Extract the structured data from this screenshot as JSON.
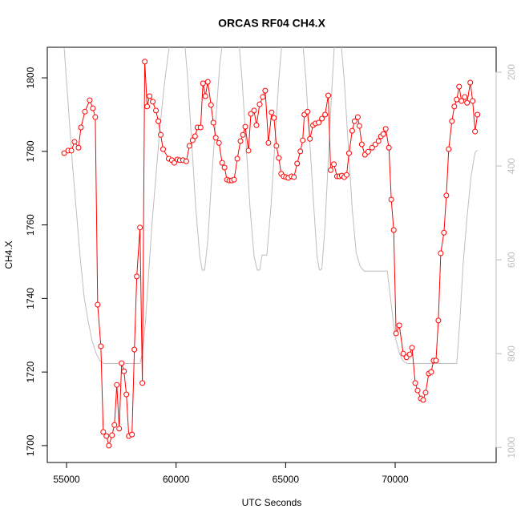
{
  "chart_data": {
    "type": "line",
    "title": "ORCAS RF04 CH4.X",
    "xlabel": "UTC Seconds",
    "ylabel": "CH4.X",
    "xlim": [
      54120,
      74610
    ],
    "ylim": [
      1695.4,
      1808.3
    ],
    "y2lim": [
      1032,
      147
    ],
    "xticks": [
      55000,
      60000,
      65000,
      70000
    ],
    "yticks": [
      1700,
      1720,
      1740,
      1760,
      1780,
      1800
    ],
    "y2ticks": [
      200,
      400,
      600,
      800,
      1000
    ],
    "series": [
      {
        "color": "#ff0000",
        "marker": "circle",
        "x": [
          54891,
          55073,
          55219,
          55364,
          55546,
          55656,
          55838,
          56056,
          56202,
          56311,
          56420,
          56566,
          56675,
          56821,
          56930,
          57076,
          57185,
          57294,
          57404,
          57513,
          57622,
          57731,
          57841,
          57986,
          58096,
          58205,
          58351,
          58460,
          58569,
          58678,
          58788,
          58934,
          59079,
          59189,
          59298,
          59407,
          59662,
          59807,
          59917,
          60062,
          60172,
          60317,
          60463,
          60609,
          60754,
          60864,
          60973,
          61119,
          61228,
          61337,
          61447,
          61592,
          61701,
          61811,
          61957,
          62102,
          62211,
          62321,
          62430,
          62539,
          62648,
          62794,
          62940,
          63049,
          63158,
          63304,
          63414,
          63559,
          63668,
          63814,
          63960,
          64069,
          64215,
          64360,
          64470,
          64579,
          64688,
          64797,
          64907,
          65016,
          65125,
          65271,
          65380,
          65526,
          65672,
          65781,
          65854,
          65999,
          66109,
          66254,
          66364,
          66509,
          66655,
          66801,
          66946,
          67055,
          67201,
          67347,
          67456,
          67565,
          67674,
          67784,
          67893,
          68039,
          68148,
          68294,
          68367,
          68475,
          68621,
          68767,
          68949,
          69095,
          69240,
          69350,
          69459,
          69568,
          69714,
          69823,
          69933,
          70042,
          70187,
          70370,
          70515,
          70661,
          70770,
          70916,
          71025,
          71171,
          71280,
          71389,
          71535,
          71644,
          71753,
          71863,
          71972,
          72081,
          72227,
          72336,
          72445,
          72591,
          72700,
          72810,
          72919,
          73028,
          73174,
          73283,
          73429,
          73538,
          73647,
          73757
        ],
        "values": [
          1779.5,
          1780.2,
          1780.2,
          1782.6,
          1781.0,
          1786.5,
          1790.8,
          1793.9,
          1791.7,
          1789.3,
          1738.3,
          1727.0,
          1703.7,
          1702.6,
          1700.0,
          1702.8,
          1705.6,
          1716.5,
          1704.6,
          1722.4,
          1720.2,
          1713.9,
          1702.6,
          1703.0,
          1726.1,
          1746.0,
          1759.3,
          1717.0,
          1804.4,
          1792.2,
          1795.0,
          1793.5,
          1791.1,
          1788.2,
          1784.5,
          1780.6,
          1778.0,
          1777.6,
          1776.9,
          1777.8,
          1777.6,
          1777.6,
          1777.3,
          1781.5,
          1783.0,
          1784.1,
          1786.5,
          1786.5,
          1798.5,
          1795.0,
          1798.9,
          1792.6,
          1787.8,
          1783.7,
          1782.3,
          1776.9,
          1775.6,
          1772.3,
          1772.1,
          1772.1,
          1772.3,
          1778.0,
          1782.8,
          1784.5,
          1786.7,
          1780.2,
          1790.2,
          1791.1,
          1787.1,
          1792.8,
          1794.8,
          1796.5,
          1782.3,
          1790.6,
          1789.1,
          1781.5,
          1778.2,
          1773.9,
          1773.2,
          1773.0,
          1772.8,
          1773.2,
          1773.0,
          1776.7,
          1780.0,
          1783.0,
          1790.0,
          1790.8,
          1783.4,
          1787.1,
          1787.6,
          1787.8,
          1788.9,
          1790.0,
          1795.2,
          1774.9,
          1776.5,
          1773.2,
          1773.2,
          1773.4,
          1773.0,
          1773.6,
          1779.5,
          1785.6,
          1788.2,
          1789.3,
          1786.9,
          1781.9,
          1779.1,
          1779.9,
          1781.0,
          1781.9,
          1782.8,
          1784.1,
          1784.7,
          1786.1,
          1781.0,
          1766.9,
          1758.6,
          1730.5,
          1732.7,
          1725.0,
          1724.0,
          1724.8,
          1726.6,
          1717.0,
          1715.0,
          1712.8,
          1712.4,
          1714.4,
          1719.6,
          1720.0,
          1723.1,
          1723.1,
          1734.0,
          1752.3,
          1757.9,
          1768.0,
          1780.6,
          1788.2,
          1792.2,
          1794.1,
          1797.6,
          1793.7,
          1794.8,
          1793.2,
          1798.7,
          1793.7,
          1785.4,
          1790.0
        ]
      },
      {
        "color": "#bebebe",
        "axis": "y2",
        "x": [
          54891,
          55073,
          55255,
          55437,
          55619,
          55801,
          55983,
          56165,
          56347,
          56530,
          56712,
          58351,
          58460,
          58605,
          58751,
          58897,
          59079,
          59261,
          59443,
          59625,
          59807,
          60354,
          60536,
          60718,
          60900,
          61082,
          61192,
          61301,
          61447,
          61629,
          61811,
          61993,
          62175,
          62831,
          63013,
          63195,
          63377,
          63559,
          63705,
          63814,
          63923,
          64142,
          64324,
          64506,
          64688,
          64870,
          65744,
          65927,
          66109,
          66291,
          66436,
          66546,
          66655,
          66801,
          66946,
          67092,
          67238,
          67492,
          67674,
          67857,
          68039,
          68221,
          68403,
          68585,
          69641,
          69823,
          70005,
          70187,
          70370,
          70552,
          72810,
          72955,
          73101,
          73283,
          73465,
          73647,
          73757
        ],
        "values": [
          149,
          268,
          388,
          491,
          593,
          679,
          730,
          773,
          799,
          816,
          821,
          821,
          799,
          730,
          627,
          525,
          422,
          320,
          234,
          166,
          115,
          115,
          217,
          354,
          491,
          593,
          622,
          622,
          559,
          422,
          303,
          183,
          115,
          115,
          217,
          354,
          491,
          593,
          622,
          622,
          590,
          590,
          491,
          354,
          217,
          115,
          115,
          217,
          354,
          491,
          593,
          622,
          619,
          525,
          388,
          251,
          132,
          115,
          217,
          354,
          491,
          585,
          614,
          624,
          624,
          696,
          764,
          799,
          816,
          821,
          821,
          730,
          610,
          508,
          422,
          371,
          366
        ]
      }
    ]
  }
}
